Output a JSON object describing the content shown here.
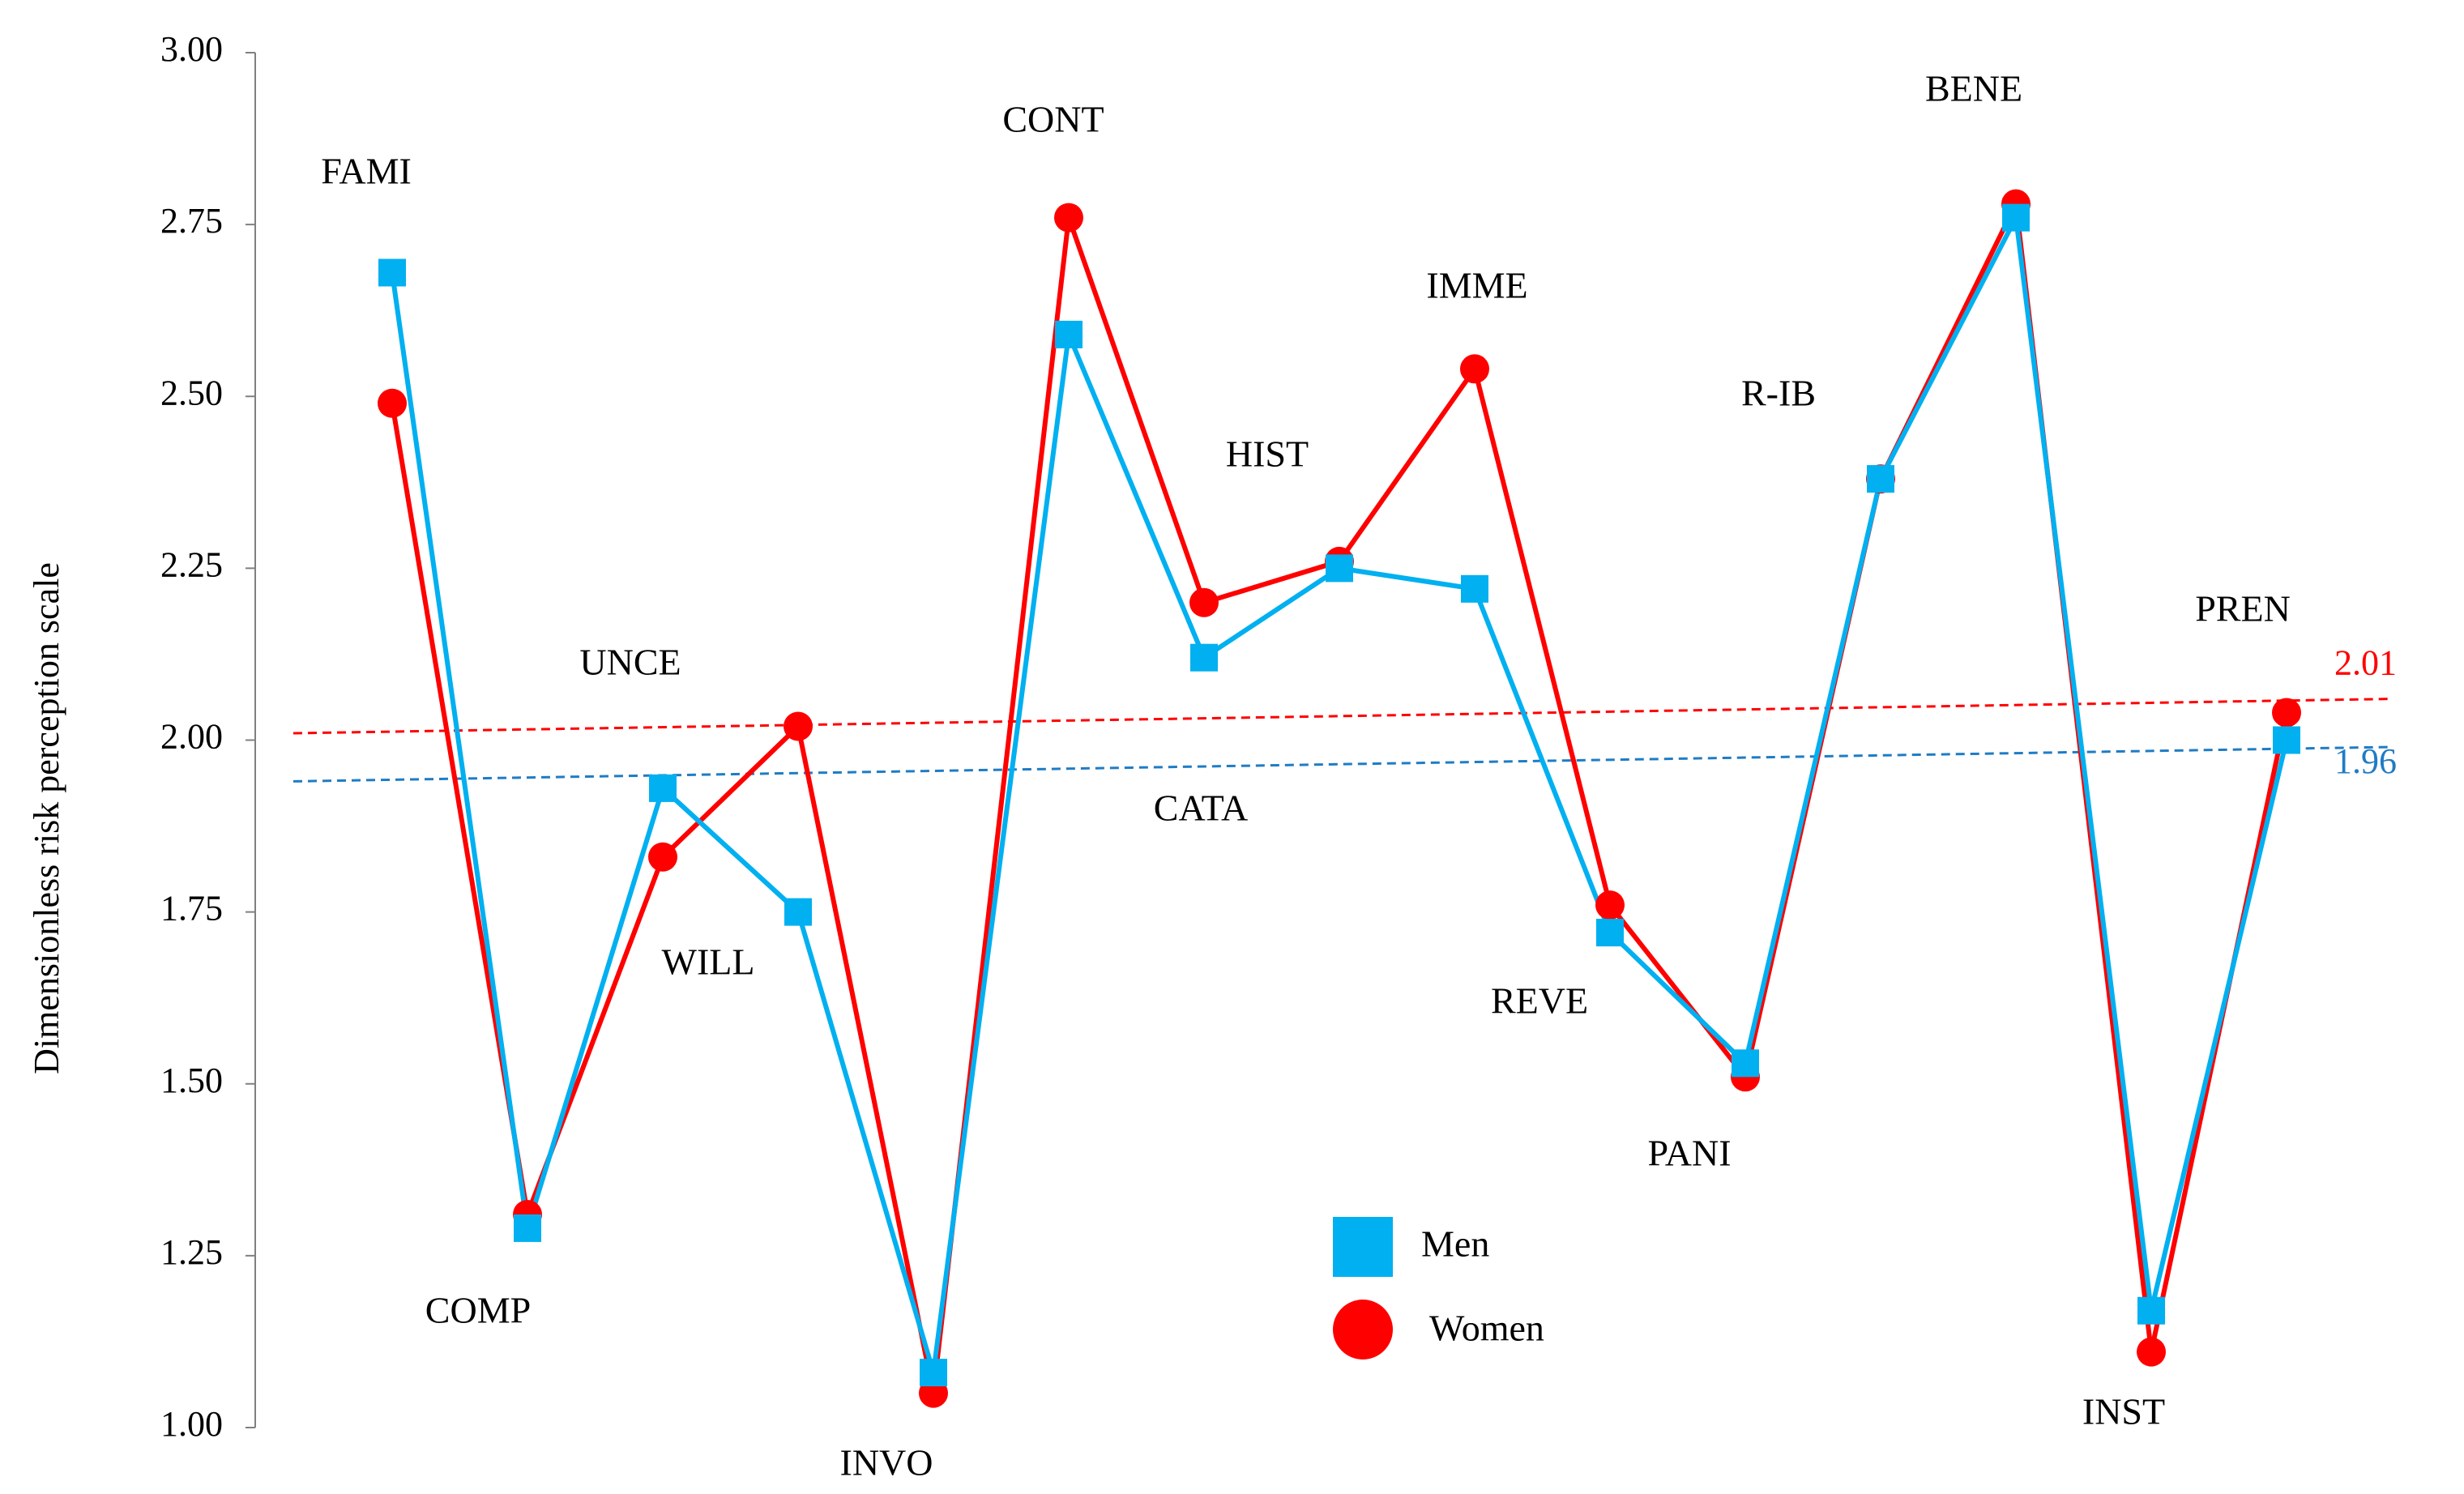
{
  "chart_data": {
    "type": "line",
    "ylabel": "Dimensionless risk perception scale",
    "ylim": [
      1.0,
      3.0
    ],
    "yticks": [
      "1.00",
      "1.25",
      "1.50",
      "1.75",
      "2.00",
      "2.25",
      "2.50",
      "2.75",
      "3.00"
    ],
    "grid": false,
    "legend_position": "bottom-center",
    "categories": [
      "FAMI",
      "COMP",
      "UNCE",
      "WILL",
      "INVO",
      "CONT",
      "CATA",
      "HIST",
      "IMME",
      "REVE",
      "PANI",
      "R-IB",
      "BENE",
      "INST",
      "PREN"
    ],
    "series": [
      {
        "name": "Men",
        "marker": "square",
        "color": "#00B0F0",
        "values": [
          2.68,
          1.29,
          1.93,
          1.75,
          1.08,
          2.59,
          2.12,
          2.25,
          2.22,
          1.72,
          1.53,
          2.38,
          2.76,
          1.17,
          2.0
        ]
      },
      {
        "name": "Women",
        "marker": "circle",
        "color": "#FF0000",
        "values": [
          2.49,
          1.31,
          1.83,
          2.02,
          1.05,
          2.76,
          2.2,
          2.26,
          2.54,
          1.76,
          1.51,
          2.38,
          2.78,
          1.11,
          2.04
        ]
      }
    ],
    "reference_lines": [
      {
        "series": "Women",
        "label": "2.01",
        "color": "#FF0000",
        "start": 2.01,
        "end": 2.06
      },
      {
        "series": "Men",
        "label": "1.96",
        "color": "#1F7CC4",
        "start": 1.94,
        "end": 1.99
      }
    ]
  }
}
